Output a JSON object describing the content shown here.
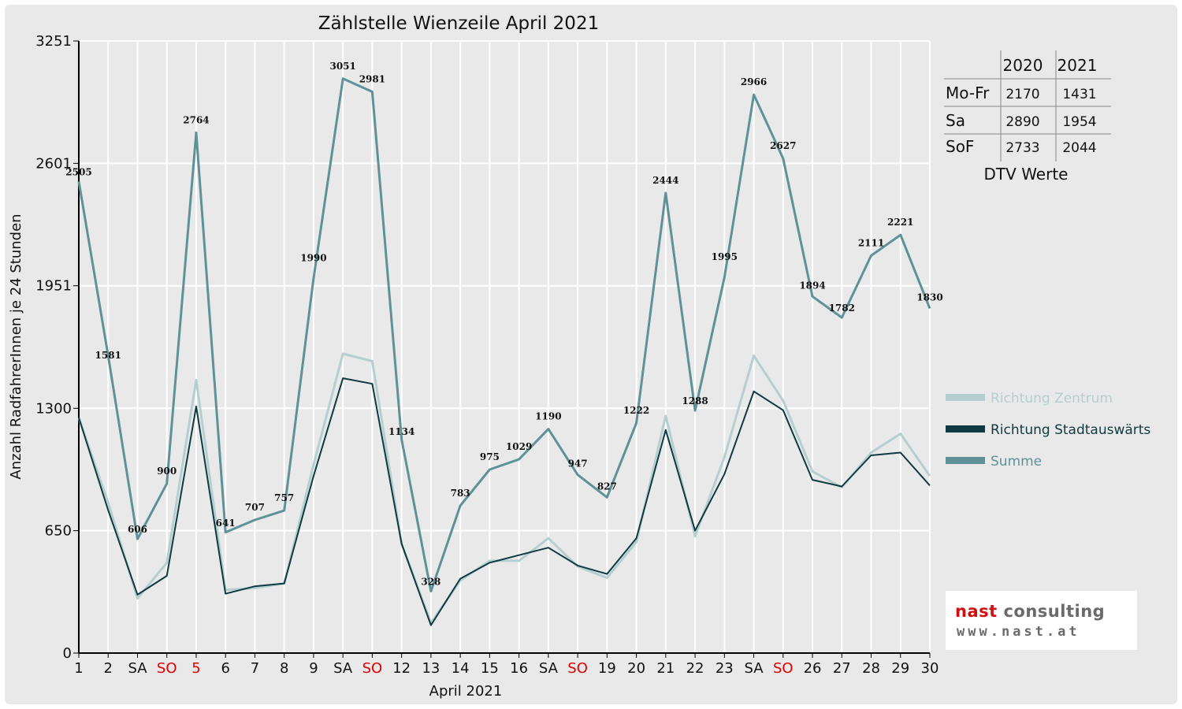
{
  "chart_data": {
    "type": "line",
    "title": "Zählstelle Wienzeile April 2021",
    "xlabel": "April 2021",
    "ylabel": "Anzahl RadfahrerInnen je 24 Stunden",
    "categories": [
      "1",
      "2",
      "SA",
      "SO",
      "5",
      "6",
      "7",
      "8",
      "9",
      "SA",
      "SO",
      "12",
      "13",
      "14",
      "15",
      "16",
      "SA",
      "SO",
      "19",
      "20",
      "21",
      "22",
      "23",
      "SA",
      "SO",
      "26",
      "27",
      "28",
      "29",
      "30"
    ],
    "red_categories": [
      3,
      4,
      10,
      17,
      24
    ],
    "yticks": [
      0,
      650,
      1300,
      1951,
      2601,
      3251
    ],
    "ylim": [
      0,
      3251
    ],
    "grid": true,
    "series": [
      {
        "name": "Richtung Zentrum",
        "color": "#b5cfd1",
        "values": [
          1250,
          800,
          290,
          480,
          1450,
          335,
          345,
          370,
          1000,
          1590,
          1550,
          580,
          160,
          385,
          490,
          490,
          610,
          460,
          400,
          590,
          1260,
          620,
          1040,
          1580,
          1340,
          965,
          880,
          1065,
          1165,
          940
        ]
      },
      {
        "name": "Richtung Stadtauswärts",
        "color": "#0f3a42",
        "values": [
          1250,
          760,
          310,
          410,
          1310,
          315,
          355,
          370,
          940,
          1460,
          1430,
          580,
          148,
          395,
          480,
          520,
          560,
          465,
          420,
          610,
          1185,
          650,
          950,
          1390,
          1290,
          920,
          885,
          1050,
          1065,
          890
        ]
      },
      {
        "name": "Summe",
        "color": "#5f9199",
        "values": [
          2505,
          1581,
          606,
          900,
          2764,
          641,
          707,
          757,
          1990,
          3051,
          2981,
          1134,
          328,
          783,
          975,
          1029,
          1190,
          947,
          827,
          1222,
          2444,
          1288,
          1995,
          2966,
          2627,
          1894,
          1782,
          2111,
          2221,
          1830
        ],
        "labels": [
          "2505",
          "1581",
          "606",
          "900",
          "2764",
          "641",
          "707",
          "757",
          "1990",
          "3051",
          "2981",
          "1134",
          "328",
          "783",
          "975",
          "1029",
          "1190",
          "947",
          "827",
          "1222",
          "2444",
          "1288",
          "1995",
          "2966",
          "2627",
          "1894",
          "1782",
          "2111",
          "2221",
          "1830"
        ]
      }
    ],
    "legend": {
      "position": "right"
    }
  },
  "dtv_table": {
    "columns": [
      "2020",
      "2021"
    ],
    "rows": [
      {
        "label": "Mo-Fr",
        "v2020": "2170",
        "v2021": "1431"
      },
      {
        "label": "Sa",
        "v2020": "2890",
        "v2021": "1954"
      },
      {
        "label": "SoF",
        "v2020": "2733",
        "v2021": "2044"
      }
    ],
    "caption": "DTV Werte"
  },
  "logo": {
    "line1_red": "nast",
    "line1_gray": "consulting",
    "line2": "www.nast.at"
  }
}
